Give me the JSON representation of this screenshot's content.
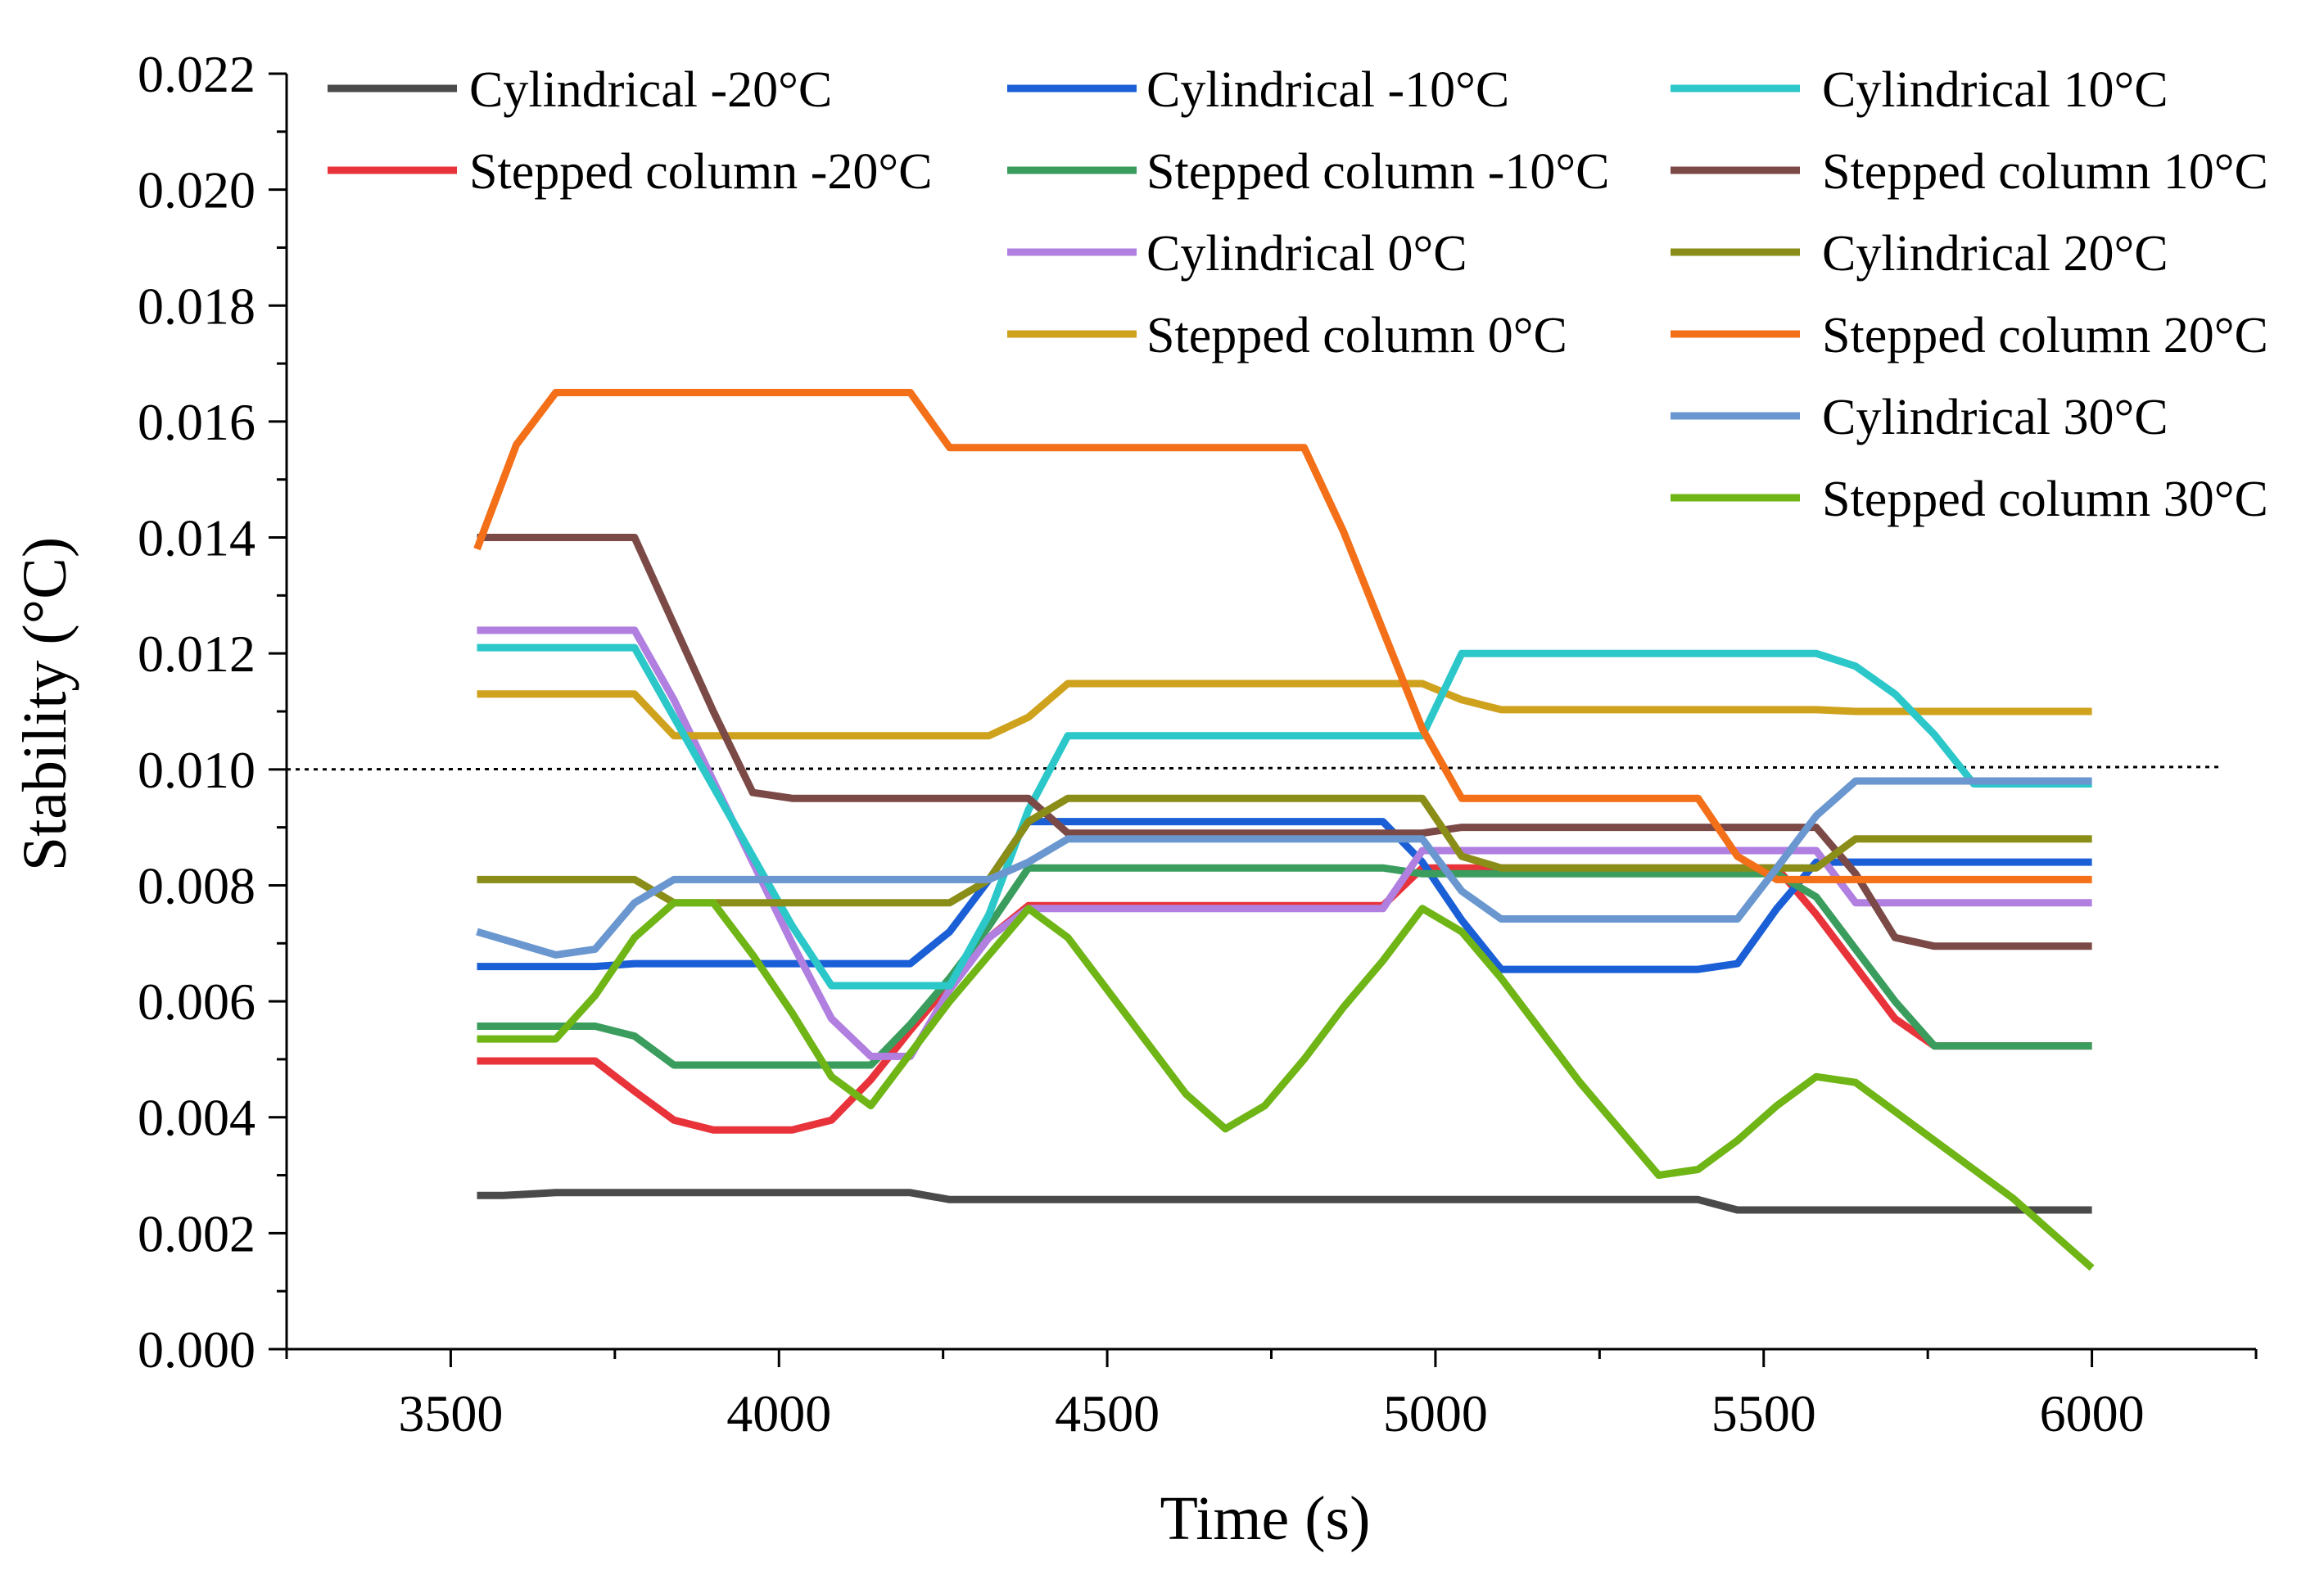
{
  "chart_data": {
    "type": "line",
    "title": "",
    "xlabel": "Time  (s)",
    "ylabel": "Stability (°C)",
    "xlim": [
      3250,
      6250
    ],
    "ylim": [
      0,
      0.022
    ],
    "xticks": [
      3500,
      4000,
      4500,
      5000,
      5500,
      6000
    ],
    "xtick_labels": [
      "3500",
      "4000",
      "4500",
      "5000",
      "5500",
      "6000"
    ],
    "yticks": [
      0,
      0.002,
      0.004,
      0.006,
      0.008,
      0.01,
      0.012,
      0.014,
      0.016,
      0.018,
      0.02,
      0.022
    ],
    "ytick_labels": [
      "0.000",
      "0.002",
      "0.004",
      "0.006",
      "0.008",
      "0.010",
      "0.012",
      "0.014",
      "0.016",
      "0.018",
      "0.020",
      "0.022"
    ],
    "grid": false,
    "legend_position": "top",
    "reference_line": {
      "y": 0.01,
      "style": "dotted",
      "color": "#000000"
    },
    "series": [
      {
        "name": "Cylindrical -20°C",
        "color": "#4a4a4a",
        "x": [
          3540,
          3580,
          3660,
          4200,
          4260,
          4800,
          5400,
          5460,
          6000
        ],
        "y": [
          0.00265,
          0.00265,
          0.0027,
          0.0027,
          0.00258,
          0.00258,
          0.00258,
          0.0024,
          0.0024
        ]
      },
      {
        "name": "Stepped column -20°C",
        "color": "#e8333b",
        "x": [
          3540,
          3720,
          3780,
          3840,
          3900,
          4020,
          4080,
          4140,
          4200,
          4320,
          4380,
          4920,
          4980,
          5040,
          5520,
          5580,
          5640,
          5700,
          5760,
          6000
        ],
        "y": [
          0.00497,
          0.00497,
          0.00445,
          0.00395,
          0.00378,
          0.00378,
          0.00395,
          0.00465,
          0.0055,
          0.0071,
          0.00765,
          0.00765,
          0.0083,
          0.0083,
          0.0083,
          0.0075,
          0.0066,
          0.0057,
          0.00523,
          0.00523
        ]
      },
      {
        "name": "Cylindrical -10°C",
        "color": "#1a5fd6",
        "x": [
          3540,
          3720,
          3780,
          4200,
          4260,
          4320,
          4380,
          4920,
          4980,
          5040,
          5100,
          5400,
          5460,
          5520,
          5580,
          6000
        ],
        "y": [
          0.0066,
          0.0066,
          0.00665,
          0.00665,
          0.0072,
          0.0081,
          0.0091,
          0.0091,
          0.0084,
          0.0074,
          0.00655,
          0.00655,
          0.00665,
          0.0076,
          0.0084,
          0.0084
        ]
      },
      {
        "name": "Stepped column -10°C",
        "color": "#3a9d5d",
        "x": [
          3540,
          3720,
          3780,
          3840,
          4140,
          4200,
          4260,
          4320,
          4380,
          4920,
          4980,
          5520,
          5580,
          5640,
          5700,
          5760,
          6000
        ],
        "y": [
          0.00557,
          0.00557,
          0.0054,
          0.0049,
          0.0049,
          0.0056,
          0.0064,
          0.0073,
          0.0083,
          0.0083,
          0.0082,
          0.0082,
          0.0078,
          0.0069,
          0.006,
          0.00523,
          0.00523
        ]
      },
      {
        "name": "Cylindrical 0°C",
        "color": "#b07fe0",
        "x": [
          3540,
          3780,
          3840,
          3900,
          3960,
          4020,
          4080,
          4140,
          4200,
          4260,
          4320,
          4380,
          4920,
          4980,
          5040,
          5580,
          5640,
          6000
        ],
        "y": [
          0.0124,
          0.0124,
          0.0112,
          0.0098,
          0.0084,
          0.007,
          0.0057,
          0.00505,
          0.00505,
          0.0062,
          0.0071,
          0.0076,
          0.0076,
          0.0086,
          0.0086,
          0.0086,
          0.0077,
          0.0077
        ]
      },
      {
        "name": "Stepped column 0°C",
        "color": "#cfa21e",
        "x": [
          3540,
          3780,
          3840,
          4320,
          4380,
          4440,
          4980,
          5040,
          5100,
          5580,
          5640,
          6000
        ],
        "y": [
          0.0113,
          0.0113,
          0.01058,
          0.01058,
          0.0109,
          0.01148,
          0.01148,
          0.0112,
          0.01103,
          0.01103,
          0.011,
          0.011
        ]
      },
      {
        "name": "Cylindrical 10°C",
        "color": "#2bc7c9",
        "x": [
          3540,
          3780,
          3840,
          3900,
          3960,
          4020,
          4080,
          4260,
          4320,
          4380,
          4440,
          4980,
          5040,
          5580,
          5640,
          5700,
          5760,
          5820,
          6000
        ],
        "y": [
          0.0121,
          0.0121,
          0.0109,
          0.0097,
          0.0085,
          0.0073,
          0.00627,
          0.00627,
          0.0075,
          0.0093,
          0.01058,
          0.01058,
          0.012,
          0.012,
          0.01178,
          0.0113,
          0.0106,
          0.00975,
          0.00975
        ]
      },
      {
        "name": "Stepped column 10°C",
        "color": "#7b4a47",
        "x": [
          3540,
          3780,
          3840,
          3900,
          3960,
          4020,
          4380,
          4440,
          4980,
          5040,
          5580,
          5640,
          5700,
          5760,
          6000
        ],
        "y": [
          0.014,
          0.014,
          0.0125,
          0.011,
          0.0096,
          0.0095,
          0.0095,
          0.0089,
          0.0089,
          0.009,
          0.009,
          0.0082,
          0.0071,
          0.00695,
          0.00695
        ]
      },
      {
        "name": "Cylindrical 20°C",
        "color": "#8a8d18",
        "x": [
          3540,
          3780,
          3840,
          4260,
          4320,
          4380,
          4440,
          4980,
          5040,
          5100,
          5580,
          5640,
          6000
        ],
        "y": [
          0.0081,
          0.0081,
          0.0077,
          0.0077,
          0.0081,
          0.0091,
          0.0095,
          0.0095,
          0.0085,
          0.0083,
          0.0083,
          0.0088,
          0.0088
        ]
      },
      {
        "name": "Stepped column 20°C",
        "color": "#f36f18",
        "x": [
          3540,
          3600,
          3660,
          4200,
          4260,
          4800,
          4860,
          4920,
          4980,
          5040,
          5400,
          5460,
          5520,
          6000
        ],
        "y": [
          0.0138,
          0.0156,
          0.0165,
          0.0165,
          0.01555,
          0.01555,
          0.0141,
          0.0124,
          0.0107,
          0.0095,
          0.0095,
          0.0085,
          0.0081,
          0.0081
        ]
      },
      {
        "name": "Cylindrical 30°C",
        "color": "#6a97cf",
        "x": [
          3540,
          3660,
          3720,
          3780,
          3840,
          4320,
          4380,
          4440,
          4980,
          5040,
          5100,
          5460,
          5520,
          5580,
          5640,
          6000
        ],
        "y": [
          0.0072,
          0.0068,
          0.0069,
          0.0077,
          0.0081,
          0.0081,
          0.0084,
          0.0088,
          0.0088,
          0.0079,
          0.00742,
          0.00742,
          0.0083,
          0.0092,
          0.0098,
          0.0098
        ]
      },
      {
        "name": "Stepped column 30°C",
        "color": "#6fb516",
        "x": [
          3540,
          3660,
          3720,
          3780,
          3840,
          3900,
          3960,
          4020,
          4080,
          4140,
          4200,
          4260,
          4320,
          4380,
          4440,
          4500,
          4560,
          4620,
          4680,
          4740,
          4800,
          4860,
          4920,
          4980,
          5040,
          5100,
          5160,
          5220,
          5280,
          5340,
          5400,
          5460,
          5520,
          5580,
          5640,
          5700,
          5760,
          5820,
          5880,
          5940,
          6000
        ],
        "y": [
          0.00535,
          0.00535,
          0.0061,
          0.0071,
          0.0077,
          0.0077,
          0.0068,
          0.0058,
          0.0047,
          0.0042,
          0.0051,
          0.006,
          0.0068,
          0.0076,
          0.0071,
          0.0062,
          0.0053,
          0.0044,
          0.0038,
          0.0042,
          0.005,
          0.0059,
          0.0067,
          0.0076,
          0.0072,
          0.0064,
          0.0055,
          0.0046,
          0.0038,
          0.003,
          0.0031,
          0.0036,
          0.0042,
          0.0047,
          0.0046,
          0.0041,
          0.0036,
          0.0031,
          0.0026,
          0.002,
          0.0014
        ]
      }
    ]
  }
}
